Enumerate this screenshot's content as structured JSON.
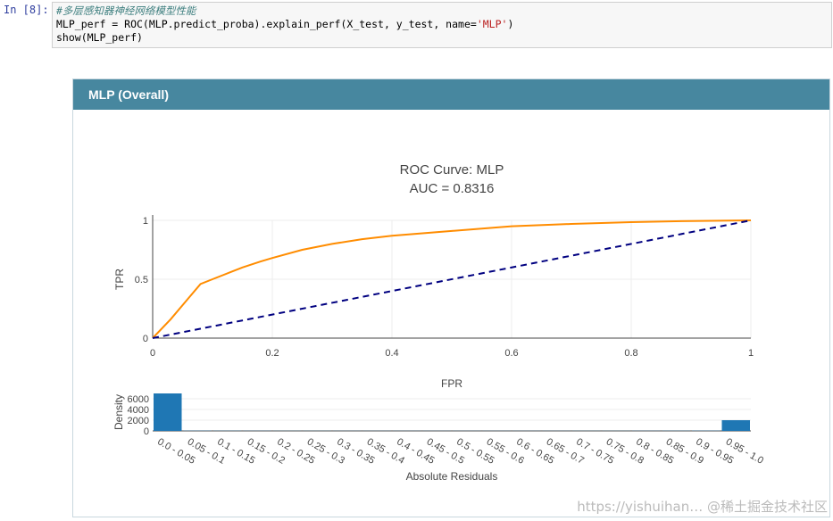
{
  "cell": {
    "prompt": "In  [8]:",
    "lines": [
      "#多层感知器神经网络模型性能",
      "MLP_perf = ROC(MLP.predict_proba).explain_perf(X_test, y_test, name='MLP')",
      "show(MLP_perf)"
    ]
  },
  "panel": {
    "title": "MLP (Overall)"
  },
  "chart_data": [
    {
      "type": "line",
      "title": "ROC Curve: MLP",
      "subtitle": "AUC = 0.8316",
      "xlabel": "FPR",
      "ylabel": "TPR",
      "xlim": [
        0,
        1
      ],
      "ylim": [
        0,
        1
      ],
      "xticks": [
        "0",
        "0.2",
        "0.4",
        "0.6",
        "0.8",
        "1"
      ],
      "yticks": [
        "0",
        "0.5",
        "1"
      ],
      "grid": true,
      "series": [
        {
          "color": "#ff8c00",
          "x": [
            0,
            0.03,
            0.06,
            0.08,
            0.1,
            0.13,
            0.15,
            0.18,
            0.2,
            0.25,
            0.3,
            0.35,
            0.4,
            0.5,
            0.6,
            0.7,
            0.8,
            0.9,
            1
          ],
          "y": [
            0,
            0.16,
            0.34,
            0.46,
            0.5,
            0.56,
            0.6,
            0.65,
            0.68,
            0.75,
            0.8,
            0.84,
            0.87,
            0.91,
            0.95,
            0.97,
            0.985,
            0.995,
            1
          ]
        },
        {
          "color": "#000080",
          "dash": true,
          "x": [
            0,
            1
          ],
          "y": [
            0,
            1
          ]
        }
      ]
    },
    {
      "type": "bar",
      "xlabel": "Absolute Residuals",
      "ylabel": "Density",
      "ylim": [
        0,
        7000
      ],
      "yticks": [
        "0",
        "2000",
        "4000",
        "6000"
      ],
      "categories": [
        "0.0 - 0.05",
        "0.05 - 0.1",
        "0.1 - 0.15",
        "0.15 - 0.2",
        "0.2 - 0.25",
        "0.25 - 0.3",
        "0.3 - 0.35",
        "0.35 - 0.4",
        "0.4 - 0.45",
        "0.45 - 0.5",
        "0.5 - 0.55",
        "0.55 - 0.6",
        "0.6 - 0.65",
        "0.65 - 0.7",
        "0.7 - 0.75",
        "0.75 - 0.8",
        "0.8 - 0.85",
        "0.85 - 0.9",
        "0.9 - 0.95",
        "0.95 - 1.0"
      ],
      "values": [
        7000,
        40,
        30,
        25,
        20,
        20,
        18,
        18,
        18,
        18,
        18,
        18,
        18,
        18,
        20,
        20,
        25,
        30,
        40,
        2000
      ],
      "color": "#1f77b4"
    }
  ],
  "watermark": "https://yishuihan… @稀土掘金技术社区"
}
